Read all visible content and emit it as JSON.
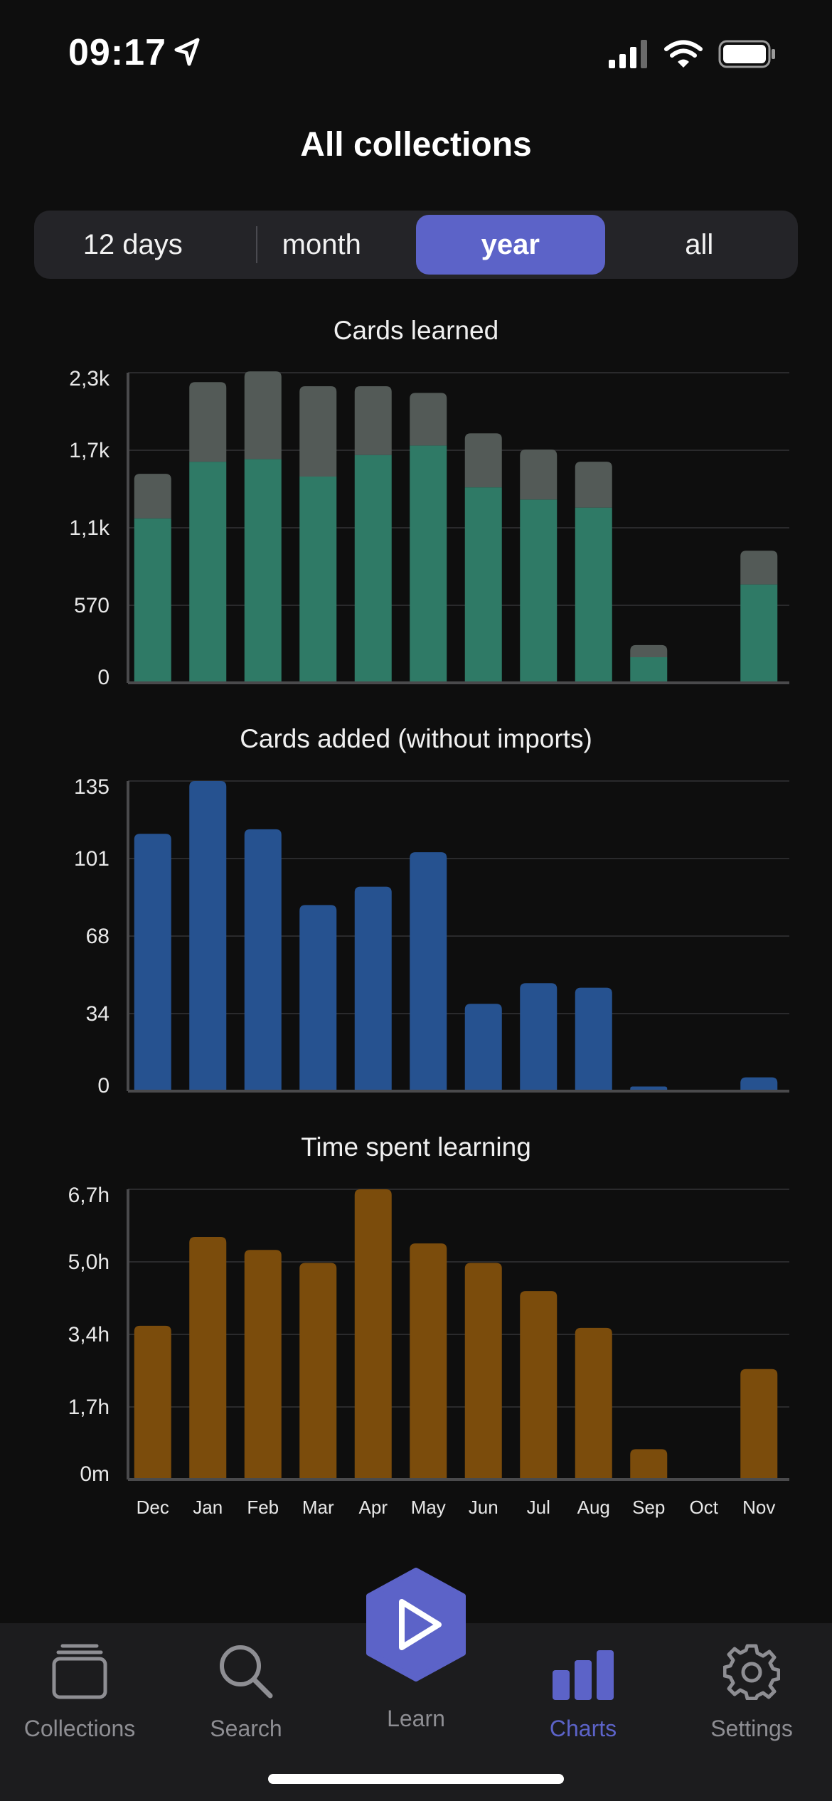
{
  "status": {
    "time": "09:17"
  },
  "page_title": "All collections",
  "segments": [
    {
      "label": "12 days",
      "active": false
    },
    {
      "label": "month",
      "active": false
    },
    {
      "label": "year",
      "active": true
    },
    {
      "label": "all",
      "active": false
    }
  ],
  "colors": {
    "learned_new": "#2f7a66",
    "learned_review": "#535a57",
    "added": "#265290",
    "time": "#7b4c0c",
    "accent": "#5c63c8"
  },
  "chart_data": [
    {
      "type": "bar",
      "title": "Cards learned",
      "stacked": true,
      "categories": [
        "Dec",
        "Jan",
        "Feb",
        "Mar",
        "Apr",
        "May",
        "Jun",
        "Jul",
        "Aug",
        "Sep",
        "Oct",
        "Nov"
      ],
      "series": [
        {
          "values": [
            1220,
            1640,
            1660,
            1530,
            1690,
            1760,
            1450,
            1360,
            1300,
            190,
            0,
            730
          ]
        },
        {
          "values": [
            330,
            590,
            650,
            670,
            510,
            390,
            400,
            370,
            340,
            90,
            0,
            250
          ]
        }
      ],
      "y_ticks": [
        "0",
        "570",
        "1,1k",
        "1,7k",
        "2,3k"
      ],
      "ylim": [
        0,
        2300
      ],
      "grid": true
    },
    {
      "type": "bar",
      "title": "Cards added (without imports)",
      "categories": [
        "Dec",
        "Jan",
        "Feb",
        "Mar",
        "Apr",
        "May",
        "Jun",
        "Jul",
        "Aug",
        "Sep",
        "Oct",
        "Nov"
      ],
      "values": [
        112,
        135,
        114,
        81,
        89,
        104,
        38,
        47,
        45,
        2,
        0,
        6
      ],
      "y_ticks": [
        "0",
        "34",
        "68",
        "101",
        "135"
      ],
      "ylim": [
        0,
        135
      ],
      "grid": true
    },
    {
      "type": "bar",
      "title": "Time spent learning",
      "categories": [
        "Dec",
        "Jan",
        "Feb",
        "Mar",
        "Apr",
        "May",
        "Jun",
        "Jul",
        "Aug",
        "Sep",
        "Oct",
        "Nov"
      ],
      "values": [
        3.55,
        5.6,
        5.3,
        5.0,
        6.7,
        5.45,
        5.0,
        4.35,
        3.5,
        0.7,
        0,
        2.55
      ],
      "y_ticks": [
        "0m",
        "1,7h",
        "3,4h",
        "5,0h",
        "6,7h"
      ],
      "ylim": [
        0,
        6.7
      ],
      "grid": true
    }
  ],
  "x_axis_labels": [
    "Dec",
    "Jan",
    "Feb",
    "Mar",
    "Apr",
    "May",
    "Jun",
    "Jul",
    "Aug",
    "Sep",
    "Oct",
    "Nov"
  ],
  "tabs": [
    {
      "label": "Collections",
      "icon": "collections-icon",
      "active": false
    },
    {
      "label": "Search",
      "icon": "search-icon",
      "active": false
    },
    {
      "label": "Learn",
      "icon": "play-icon",
      "active": false
    },
    {
      "label": "Charts",
      "icon": "bar-chart-icon",
      "active": true
    },
    {
      "label": "Settings",
      "icon": "gear-icon",
      "active": false
    }
  ]
}
